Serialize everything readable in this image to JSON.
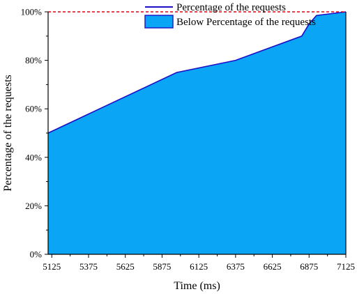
{
  "chart_data": {
    "type": "area",
    "xlabel": "Time (ms)",
    "ylabel": "Percentage of the requests",
    "xlim": [
      5100,
      7125
    ],
    "ylim": [
      0,
      100
    ],
    "x_ticks": [
      5125,
      5375,
      5625,
      5875,
      6125,
      6375,
      6625,
      6875,
      7125
    ],
    "y_ticks": [
      0,
      20,
      40,
      60,
      80,
      100
    ],
    "y_tick_labels": [
      "0%",
      "20%",
      "40%",
      "60%",
      "80%",
      "100%"
    ],
    "grid": false,
    "legend_position": "top-right",
    "reference_line": {
      "y": 100,
      "color": "#e0000e",
      "style": "dashed"
    },
    "series": [
      {
        "name": "Percentage of the requests",
        "kind": "line",
        "color": "#1a10c8",
        "x": [
          5100,
          5975,
          6375,
          6825,
          6875,
          6925,
          7125
        ],
        "y": [
          50,
          75,
          80,
          90,
          95,
          98.5,
          100
        ]
      },
      {
        "name": "Below Percentage of the requests",
        "kind": "area",
        "color": "#0aa5f5",
        "x": [
          5100,
          5975,
          6375,
          6825,
          6875,
          6925,
          7125
        ],
        "y": [
          50,
          75,
          80,
          90,
          95,
          98.5,
          100
        ]
      }
    ]
  }
}
